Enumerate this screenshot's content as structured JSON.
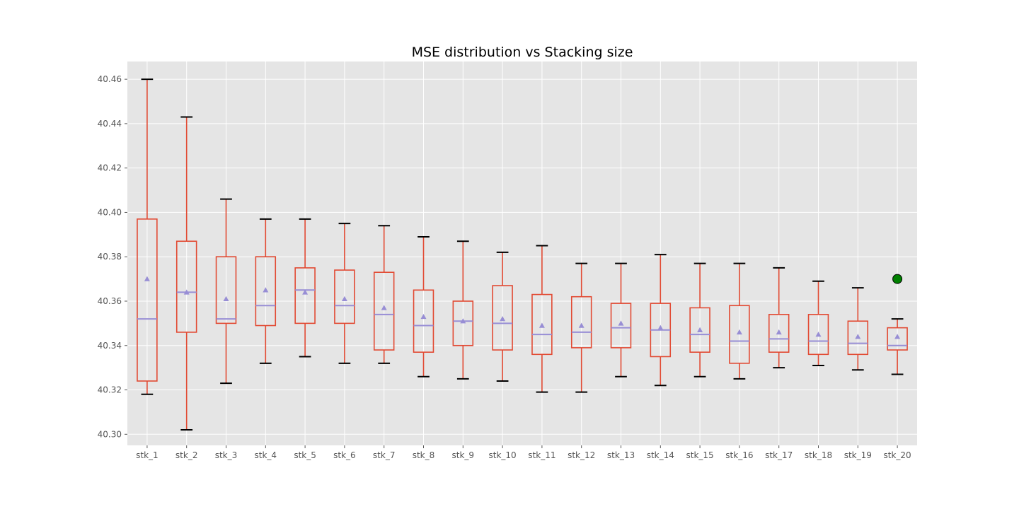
{
  "chart_data": {
    "type": "box",
    "title": "MSE distribution vs Stacking size",
    "xlabel": "",
    "ylabel": "",
    "ylim": [
      40.295,
      40.468
    ],
    "yticks": [
      40.3,
      40.32,
      40.34,
      40.36,
      40.38,
      40.4,
      40.42,
      40.44,
      40.46
    ],
    "ytick_labels": [
      "40.30",
      "40.32",
      "40.34",
      "40.36",
      "40.38",
      "40.40",
      "40.42",
      "40.44",
      "40.46"
    ],
    "grid": true,
    "colors": {
      "background": "#e5e5e5",
      "grid": "#ffffff",
      "box": "#e24a33",
      "whisker": "#e24a33",
      "cap": "#000000",
      "median": "#988ed5",
      "mean_marker": "#988ed5",
      "outlier_fill": "#008000",
      "outlier_edge": "#000000"
    },
    "categories": [
      "stk_1",
      "stk_2",
      "stk_3",
      "stk_4",
      "stk_5",
      "stk_6",
      "stk_7",
      "stk_8",
      "stk_9",
      "stk_10",
      "stk_11",
      "stk_12",
      "stk_13",
      "stk_14",
      "stk_15",
      "stk_16",
      "stk_17",
      "stk_18",
      "stk_19",
      "stk_20"
    ],
    "boxes": [
      {
        "whislo": 40.318,
        "q1": 40.324,
        "med": 40.352,
        "q3": 40.397,
        "whishi": 40.46,
        "mean": 40.37,
        "fliers": []
      },
      {
        "whislo": 40.302,
        "q1": 40.346,
        "med": 40.364,
        "q3": 40.387,
        "whishi": 40.443,
        "mean": 40.364,
        "fliers": []
      },
      {
        "whislo": 40.323,
        "q1": 40.35,
        "med": 40.352,
        "q3": 40.38,
        "whishi": 40.406,
        "mean": 40.361,
        "fliers": []
      },
      {
        "whislo": 40.332,
        "q1": 40.349,
        "med": 40.358,
        "q3": 40.38,
        "whishi": 40.397,
        "mean": 40.365,
        "fliers": []
      },
      {
        "whislo": 40.335,
        "q1": 40.35,
        "med": 40.365,
        "q3": 40.375,
        "whishi": 40.397,
        "mean": 40.364,
        "fliers": []
      },
      {
        "whislo": 40.332,
        "q1": 40.35,
        "med": 40.358,
        "q3": 40.374,
        "whishi": 40.395,
        "mean": 40.361,
        "fliers": []
      },
      {
        "whislo": 40.332,
        "q1": 40.338,
        "med": 40.354,
        "q3": 40.373,
        "whishi": 40.394,
        "mean": 40.357,
        "fliers": []
      },
      {
        "whislo": 40.326,
        "q1": 40.337,
        "med": 40.349,
        "q3": 40.365,
        "whishi": 40.389,
        "mean": 40.353,
        "fliers": []
      },
      {
        "whislo": 40.325,
        "q1": 40.34,
        "med": 40.351,
        "q3": 40.36,
        "whishi": 40.387,
        "mean": 40.351,
        "fliers": []
      },
      {
        "whislo": 40.324,
        "q1": 40.338,
        "med": 40.35,
        "q3": 40.367,
        "whishi": 40.382,
        "mean": 40.352,
        "fliers": []
      },
      {
        "whislo": 40.319,
        "q1": 40.336,
        "med": 40.345,
        "q3": 40.363,
        "whishi": 40.385,
        "mean": 40.349,
        "fliers": []
      },
      {
        "whislo": 40.319,
        "q1": 40.339,
        "med": 40.346,
        "q3": 40.362,
        "whishi": 40.377,
        "mean": 40.349,
        "fliers": []
      },
      {
        "whislo": 40.326,
        "q1": 40.339,
        "med": 40.348,
        "q3": 40.359,
        "whishi": 40.377,
        "mean": 40.35,
        "fliers": []
      },
      {
        "whislo": 40.322,
        "q1": 40.335,
        "med": 40.347,
        "q3": 40.359,
        "whishi": 40.381,
        "mean": 40.348,
        "fliers": []
      },
      {
        "whislo": 40.326,
        "q1": 40.337,
        "med": 40.345,
        "q3": 40.357,
        "whishi": 40.377,
        "mean": 40.347,
        "fliers": []
      },
      {
        "whislo": 40.325,
        "q1": 40.332,
        "med": 40.342,
        "q3": 40.358,
        "whishi": 40.377,
        "mean": 40.346,
        "fliers": []
      },
      {
        "whislo": 40.33,
        "q1": 40.337,
        "med": 40.343,
        "q3": 40.354,
        "whishi": 40.375,
        "mean": 40.346,
        "fliers": []
      },
      {
        "whislo": 40.331,
        "q1": 40.336,
        "med": 40.342,
        "q3": 40.354,
        "whishi": 40.369,
        "mean": 40.345,
        "fliers": []
      },
      {
        "whislo": 40.329,
        "q1": 40.336,
        "med": 40.341,
        "q3": 40.351,
        "whishi": 40.366,
        "mean": 40.344,
        "fliers": []
      },
      {
        "whislo": 40.327,
        "q1": 40.338,
        "med": 40.34,
        "q3": 40.348,
        "whishi": 40.352,
        "mean": 40.344,
        "fliers": [
          40.37
        ]
      }
    ]
  }
}
